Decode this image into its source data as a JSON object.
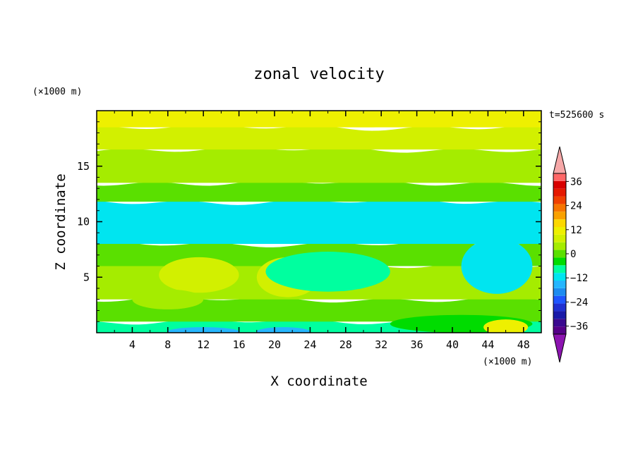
{
  "chart_data": {
    "type": "heatmap",
    "title": "zonal velocity",
    "xlabel": "X coordinate",
    "ylabel": "Z coordinate",
    "x_unit": "(×1000 m)",
    "z_unit": "(×1000 m)",
    "time_label": "t=525600 s",
    "xlim": [
      0,
      50
    ],
    "ylim": [
      0,
      20
    ],
    "x_ticks": [
      4,
      8,
      12,
      16,
      20,
      24,
      28,
      32,
      36,
      40,
      44,
      48
    ],
    "y_ticks": [
      5,
      10,
      15
    ],
    "colorbar": {
      "levels": [
        -40,
        -36,
        -32,
        -28,
        -24,
        -20,
        -16,
        -12,
        -8,
        -4,
        0,
        4,
        8,
        12,
        16,
        20,
        24,
        28,
        32,
        36,
        40
      ],
      "labels": [
        36,
        24,
        12,
        0,
        -12,
        -24,
        -36
      ],
      "colors": [
        "#550088",
        "#3a0a8f",
        "#1a1aa8",
        "#2030d0",
        "#1f56ff",
        "#1e8cf0",
        "#25b6ff",
        "#00e5f0",
        "#00ff9f",
        "#00dc00",
        "#5ae000",
        "#a5ec00",
        "#d2f000",
        "#eef000",
        "#fcd800",
        "#f9a100",
        "#f77500",
        "#f04000",
        "#e51900",
        "#d80000",
        "#ff6868"
      ],
      "under_color": "#8c14b0",
      "over_color": "#f6a8a8"
    },
    "bands": [
      {
        "z": [
          0,
          1.0
        ],
        "value": -6
      },
      {
        "z": [
          1.0,
          3.0
        ],
        "value": 2
      },
      {
        "z": [
          3.0,
          6.0
        ],
        "value": 6
      },
      {
        "z": [
          6.0,
          8.0
        ],
        "value": 1
      },
      {
        "z": [
          8.0,
          11.8
        ],
        "value": -9
      },
      {
        "z": [
          11.8,
          13.5
        ],
        "value": 1
      },
      {
        "z": [
          13.5,
          16.5
        ],
        "value": 6
      },
      {
        "z": [
          16.5,
          18.5
        ],
        "value": 8
      },
      {
        "z": [
          18.5,
          20.0
        ],
        "value": 12
      }
    ],
    "features": [
      {
        "x": 11.5,
        "z": 5.2,
        "rx": 4.5,
        "rz": 1.6,
        "value": 9
      },
      {
        "x": 21.5,
        "z": 5.0,
        "rx": 3.5,
        "rz": 1.8,
        "value": 8
      },
      {
        "x": 26,
        "z": 5.5,
        "rx": 7,
        "rz": 1.8,
        "value": -6
      },
      {
        "x": 45,
        "z": 6.0,
        "rx": 4,
        "rz": 2.5,
        "value": -10
      },
      {
        "x": 41,
        "z": 0.8,
        "rx": 8,
        "rz": 0.8,
        "value": -4
      },
      {
        "x": 46,
        "z": 0.5,
        "rx": 2.5,
        "rz": 0.7,
        "value": 12
      },
      {
        "x": 12,
        "z": 0.1,
        "rx": 4,
        "rz": 0.4,
        "value": -15
      },
      {
        "x": 21,
        "z": 0.1,
        "rx": 3,
        "rz": 0.4,
        "value": -15
      },
      {
        "x": 8,
        "z": 3.0,
        "rx": 4,
        "rz": 0.9,
        "value": 6
      },
      {
        "x": 30,
        "z": 19.4,
        "rx": 10,
        "rz": 0.9,
        "value": 14
      }
    ]
  }
}
